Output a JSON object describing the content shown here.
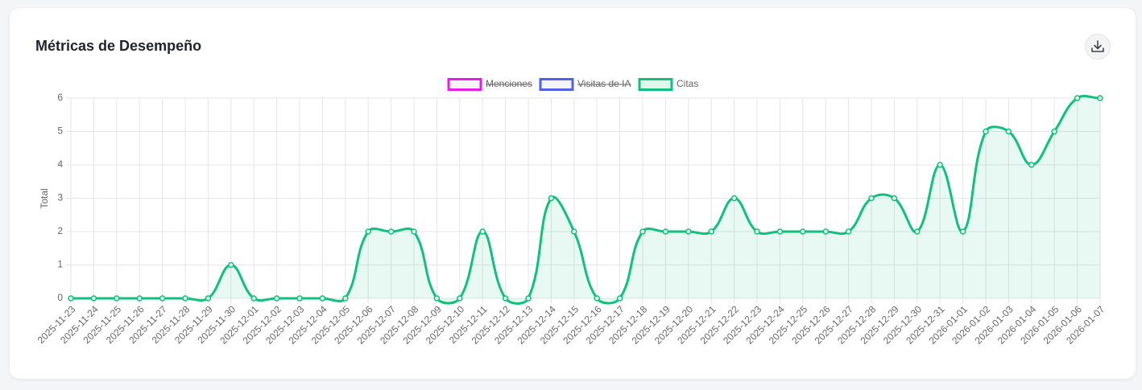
{
  "chart_data": {
    "type": "line",
    "title": "Métricas de Desempeño",
    "ylabel": "Total",
    "categories": [
      "2025-11-23",
      "2025-11-24",
      "2025-11-25",
      "2025-11-26",
      "2025-11-27",
      "2025-11-28",
      "2025-11-29",
      "2025-11-30",
      "2025-12-01",
      "2025-12-02",
      "2025-12-03",
      "2025-12-04",
      "2025-12-05",
      "2025-12-06",
      "2025-12-07",
      "2025-12-08",
      "2025-12-09",
      "2025-12-10",
      "2025-12-11",
      "2025-12-12",
      "2025-12-13",
      "2025-12-14",
      "2025-12-15",
      "2025-12-16",
      "2025-12-17",
      "2025-12-18",
      "2025-12-19",
      "2025-12-20",
      "2025-12-21",
      "2025-12-22",
      "2025-12-23",
      "2025-12-24",
      "2025-12-25",
      "2025-12-26",
      "2025-12-27",
      "2025-12-28",
      "2025-12-29",
      "2025-12-30",
      "2025-12-31",
      "2026-01-01",
      "2026-01-02",
      "2026-01-03",
      "2026-01-04",
      "2026-01-05",
      "2026-01-06",
      "2026-01-07"
    ],
    "series": [
      {
        "name": "Menciones",
        "color": "#e81ce8",
        "hidden": true
      },
      {
        "name": "Visitas de IA",
        "color": "#5060e8",
        "hidden": true
      },
      {
        "name": "Citas",
        "color": "#10c17d",
        "hidden": false,
        "values": [
          0,
          0,
          0,
          0,
          0,
          0,
          0,
          1,
          0,
          0,
          0,
          0,
          0,
          2,
          2,
          2,
          0,
          0,
          2,
          0,
          0,
          3,
          2,
          0,
          0,
          2,
          2,
          2,
          2,
          3,
          2,
          2,
          2,
          2,
          2,
          3,
          3,
          2,
          4,
          2,
          5,
          5,
          4,
          5,
          6,
          6
        ]
      }
    ],
    "ylim": [
      0,
      6
    ],
    "yticks": [
      0,
      1,
      2,
      3,
      4,
      5,
      6
    ],
    "grid": true,
    "legend": "top"
  }
}
